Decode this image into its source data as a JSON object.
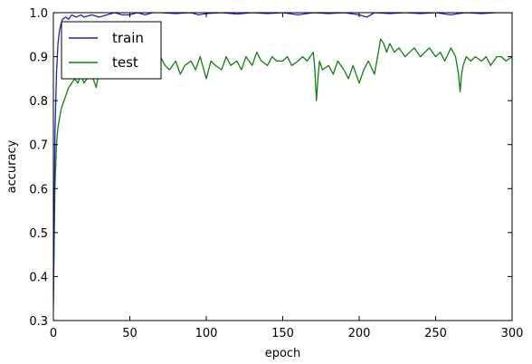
{
  "chart_data": {
    "type": "line",
    "xlabel": "epoch",
    "ylabel": "accuracy",
    "xlim": [
      0,
      300
    ],
    "ylim": [
      0.3,
      1.0
    ],
    "xticks": [
      0,
      50,
      100,
      150,
      200,
      250,
      300
    ],
    "yticks": [
      0.3,
      0.4,
      0.5,
      0.6,
      0.7,
      0.8,
      0.9,
      1.0
    ],
    "xtick_labels": [
      "0",
      "50",
      "100",
      "150",
      "200",
      "250",
      "300"
    ],
    "ytick_labels": [
      "0.3",
      "0.4",
      "0.5",
      "0.6",
      "0.7",
      "0.8",
      "0.9",
      "1.0"
    ],
    "grid": false,
    "legend": "top-left",
    "series": [
      {
        "name": "train",
        "color": "#1f1fcf",
        "x": [
          0,
          1,
          2,
          3,
          4,
          5,
          6,
          8,
          10,
          12,
          15,
          18,
          20,
          25,
          30,
          35,
          40,
          45,
          50,
          55,
          60,
          65,
          70,
          80,
          90,
          95,
          100,
          110,
          120,
          130,
          140,
          150,
          160,
          170,
          180,
          190,
          200,
          205,
          210,
          220,
          230,
          240,
          250,
          260,
          265,
          270,
          280,
          290,
          300
        ],
        "y": [
          0.33,
          0.72,
          0.86,
          0.93,
          0.96,
          0.975,
          0.985,
          0.99,
          0.985,
          0.995,
          0.99,
          0.995,
          0.99,
          0.995,
          0.99,
          0.995,
          1.0,
          0.995,
          0.995,
          1.0,
          0.995,
          1.0,
          1.0,
          0.998,
          1.0,
          0.995,
          0.998,
          1.0,
          0.997,
          1.0,
          0.998,
          1.0,
          0.995,
          1.0,
          0.998,
          1.0,
          0.995,
          0.99,
          1.0,
          0.998,
          1.0,
          0.998,
          1.0,
          0.995,
          0.998,
          1.0,
          0.998,
          1.0,
          1.0
        ]
      },
      {
        "name": "test",
        "color": "#108010",
        "x": [
          0,
          1,
          2,
          3,
          4,
          5,
          6,
          7,
          8,
          9,
          10,
          12,
          14,
          16,
          18,
          20,
          22,
          25,
          28,
          30,
          33,
          36,
          40,
          43,
          46,
          50,
          53,
          56,
          60,
          63,
          66,
          70,
          73,
          76,
          80,
          83,
          86,
          90,
          93,
          96,
          100,
          103,
          106,
          110,
          113,
          116,
          120,
          123,
          126,
          130,
          133,
          136,
          140,
          143,
          146,
          150,
          153,
          156,
          160,
          163,
          166,
          170,
          171,
          172,
          173,
          174,
          176,
          180,
          183,
          186,
          190,
          193,
          196,
          200,
          203,
          206,
          210,
          212,
          214,
          216,
          218,
          220,
          223,
          226,
          230,
          233,
          236,
          240,
          243,
          246,
          250,
          253,
          256,
          260,
          263,
          265,
          266,
          267,
          268,
          270,
          273,
          276,
          280,
          283,
          286,
          290,
          293,
          296,
          300
        ],
        "y": [
          0.35,
          0.6,
          0.7,
          0.74,
          0.76,
          0.78,
          0.79,
          0.8,
          0.81,
          0.82,
          0.83,
          0.84,
          0.85,
          0.84,
          0.86,
          0.84,
          0.85,
          0.86,
          0.83,
          0.87,
          0.85,
          0.86,
          0.85,
          0.88,
          0.86,
          0.87,
          0.86,
          0.89,
          0.86,
          0.88,
          0.87,
          0.9,
          0.88,
          0.87,
          0.89,
          0.86,
          0.88,
          0.89,
          0.87,
          0.9,
          0.85,
          0.89,
          0.88,
          0.87,
          0.9,
          0.88,
          0.89,
          0.87,
          0.9,
          0.88,
          0.91,
          0.89,
          0.88,
          0.9,
          0.89,
          0.89,
          0.9,
          0.88,
          0.89,
          0.9,
          0.89,
          0.91,
          0.87,
          0.8,
          0.85,
          0.89,
          0.87,
          0.88,
          0.86,
          0.89,
          0.87,
          0.85,
          0.88,
          0.84,
          0.87,
          0.89,
          0.86,
          0.9,
          0.94,
          0.93,
          0.91,
          0.93,
          0.91,
          0.92,
          0.9,
          0.91,
          0.92,
          0.9,
          0.91,
          0.92,
          0.9,
          0.91,
          0.89,
          0.92,
          0.9,
          0.86,
          0.82,
          0.86,
          0.88,
          0.9,
          0.89,
          0.9,
          0.89,
          0.9,
          0.88,
          0.9,
          0.9,
          0.89,
          0.9
        ]
      }
    ]
  }
}
